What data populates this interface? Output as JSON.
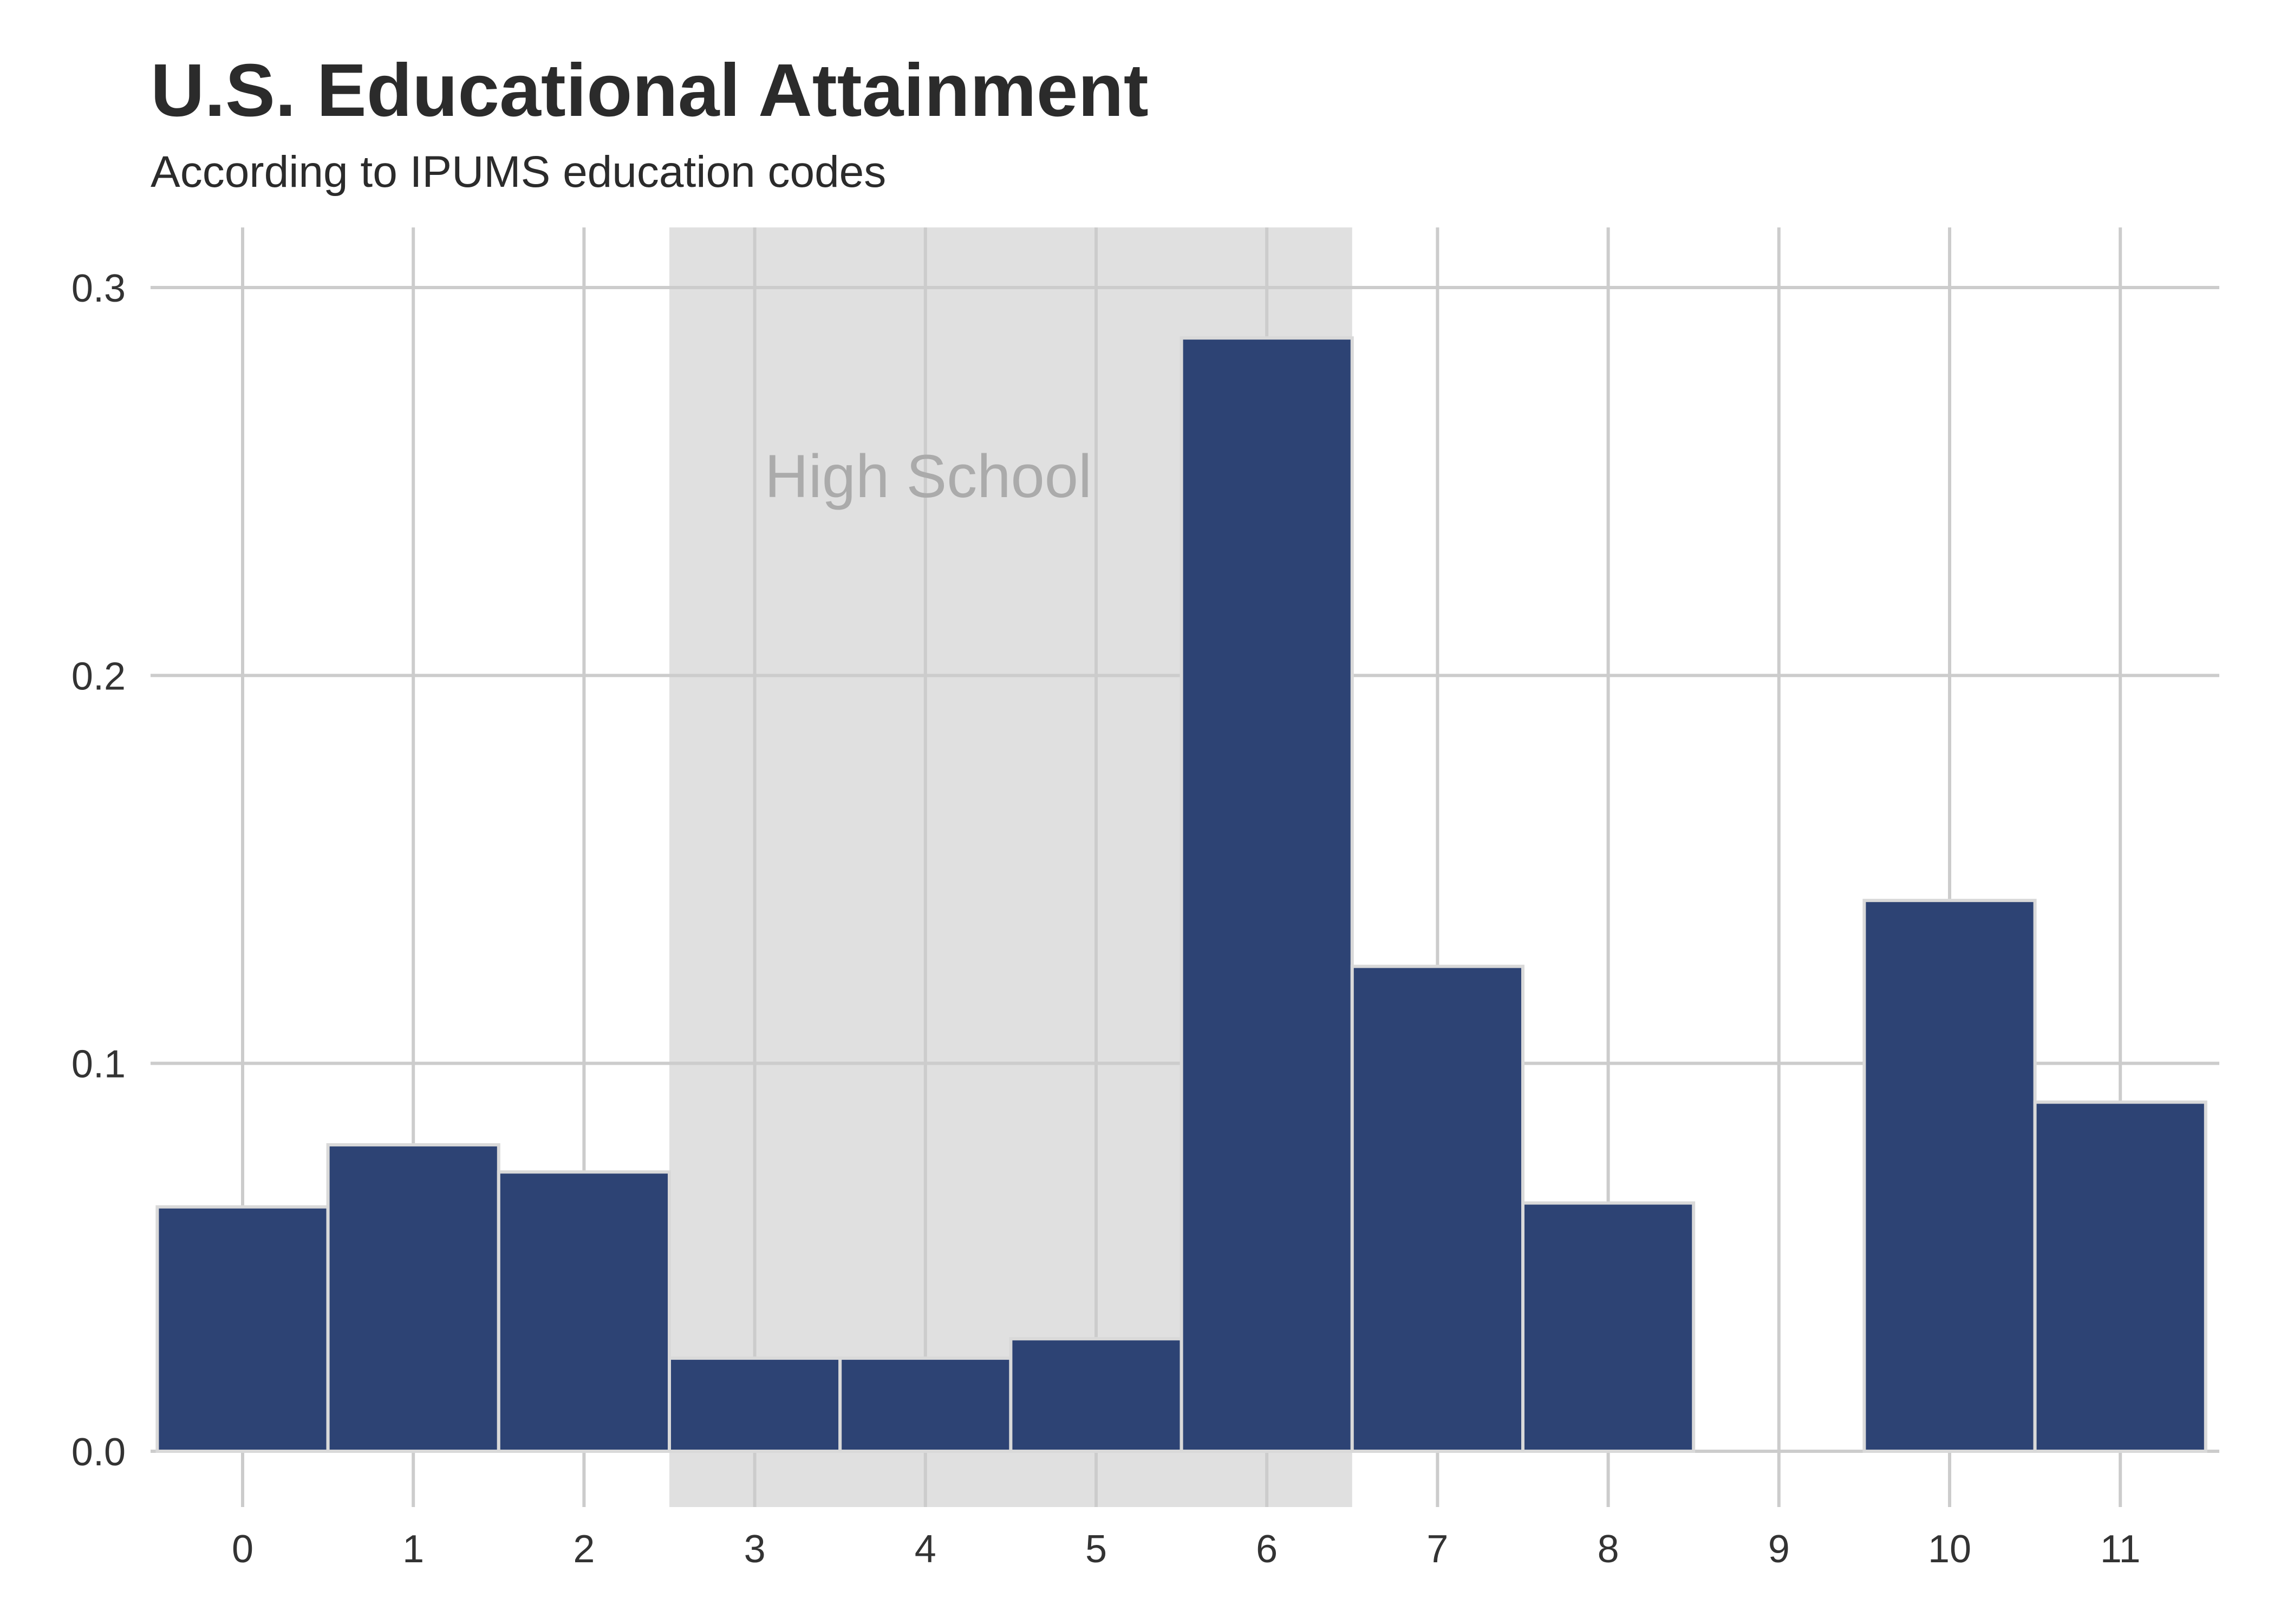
{
  "chart_data": {
    "type": "bar",
    "title": "U.S. Educational Attainment",
    "subtitle": "According to IPUMS education codes",
    "xlabel": "",
    "ylabel": "",
    "categories": [
      "0",
      "1",
      "2",
      "3",
      "4",
      "5",
      "6",
      "7",
      "8",
      "9",
      "10",
      "11"
    ],
    "values": [
      0.063,
      0.079,
      0.072,
      0.024,
      0.024,
      0.029,
      0.287,
      0.125,
      0.064,
      0.0,
      0.142,
      0.09
    ],
    "ylim": [
      0,
      0.315
    ],
    "yticks": [
      "0.0",
      "0.1",
      "0.2",
      "0.3"
    ],
    "grid": true,
    "highlight": {
      "label": "High School",
      "from": 2.5,
      "to": 6.5
    },
    "colors": {
      "bar": "#2d4374",
      "bar_edge": "#d9d9d9",
      "highlight": "#e0e0e0",
      "grid": "#cccccc",
      "annotation": "#ababab"
    }
  }
}
